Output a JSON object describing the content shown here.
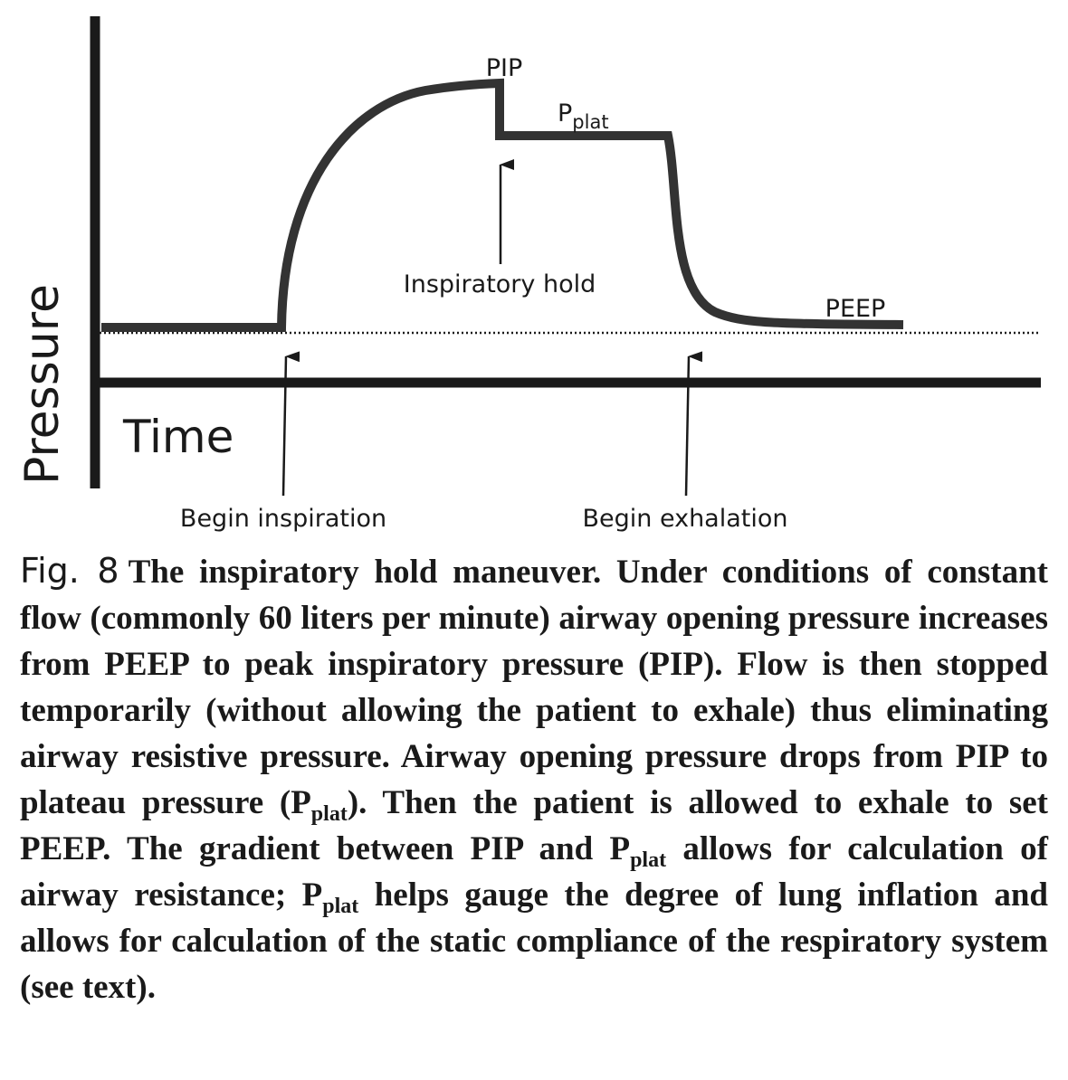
{
  "figure": {
    "y_axis_label": "Pressure",
    "x_axis_label": "Time",
    "labels": {
      "pip": "PIP",
      "pplat_main": "P",
      "pplat_sub": "plat",
      "inspiratory_hold": "Inspiratory hold",
      "peep": "PEEP",
      "begin_inspiration": "Begin inspiration",
      "begin_exhalation": "Begin exhalation"
    }
  },
  "caption": {
    "fig_label": "Fig. 8",
    "parts": [
      {
        "text": "The inspiratory hold maneuver. Under conditions of constant flow (commonly 60 liters per minute) airway opening pressure increases from PEEP to peak inspiratory pressure (PIP). Flow is then stopped temporarily (without allowing the patient to exhale) thus eliminating airway resistive pressure. Airway opening pressure drops from PIP to plateau pressure (P"
      },
      {
        "sub": "plat"
      },
      {
        "text": "). Then the patient is allowed to exhale to set PEEP. The gradient between PIP and P"
      },
      {
        "sub": "plat"
      },
      {
        "text": " allows for calculation of airway resistance; P"
      },
      {
        "sub": "plat"
      },
      {
        "text": " helps gauge the degree of lung inflation and allows for calculation of the static compliance of the respiratory system (see text)."
      }
    ]
  }
}
